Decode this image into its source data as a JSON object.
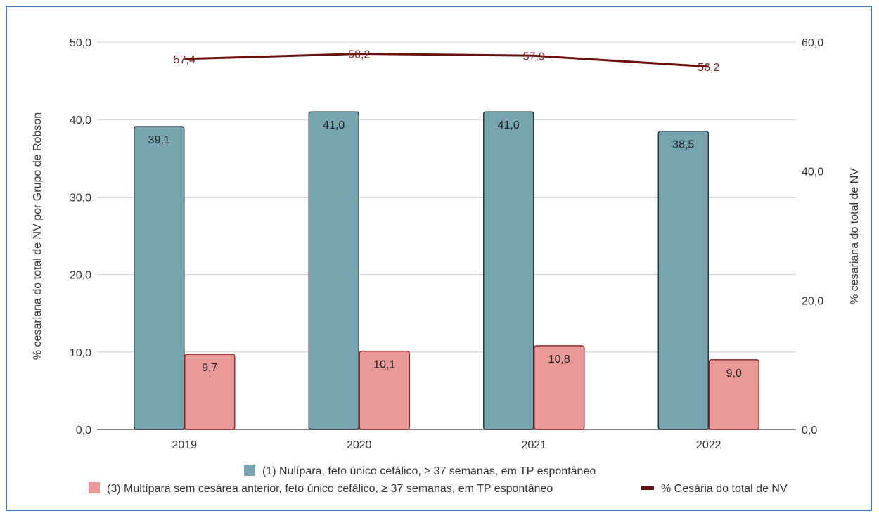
{
  "chart_data": {
    "type": "bar",
    "categories": [
      "2019",
      "2020",
      "2021",
      "2022"
    ],
    "series": [
      {
        "name": "(1) Nulípara, feto único cefálico, ≥ 37 semanas, em TP espontâneo",
        "type": "bar",
        "axis": "left",
        "color": "#76a5af",
        "values": [
          39.1,
          41.0,
          41.0,
          38.5
        ],
        "labels": [
          "39,1",
          "41,0",
          "41,0",
          "38,5"
        ]
      },
      {
        "name": "(3) Multípara sem cesárea anterior, feto único cefálico, ≥ 37 semanas, em TP espontâneo",
        "type": "bar",
        "axis": "left",
        "color": "#ea9999",
        "values": [
          9.7,
          10.1,
          10.8,
          9.0
        ],
        "labels": [
          "9,7",
          "10,1",
          "10,8",
          "9,0"
        ]
      },
      {
        "name": "% Cesária do total de NV",
        "type": "line",
        "axis": "right",
        "color": "#6b0f0f",
        "values": [
          57.4,
          58.2,
          57.9,
          56.2
        ],
        "labels": [
          "57,4",
          "58,2",
          "57,9",
          "56,2"
        ]
      }
    ],
    "ylabel": "% cesariana do total de NV por Grupo de Robson",
    "ylabel_right": "% cesariana do total de NV",
    "ylim": [
      0,
      50
    ],
    "ylim_right": [
      0,
      60
    ],
    "yticks": [
      "0,0",
      "10,0",
      "20,0",
      "30,0",
      "40,0",
      "50,0"
    ],
    "yticks_right": [
      "0,0",
      "20,0",
      "40,0",
      "60,0"
    ],
    "grid": true,
    "legend_position": "bottom"
  }
}
